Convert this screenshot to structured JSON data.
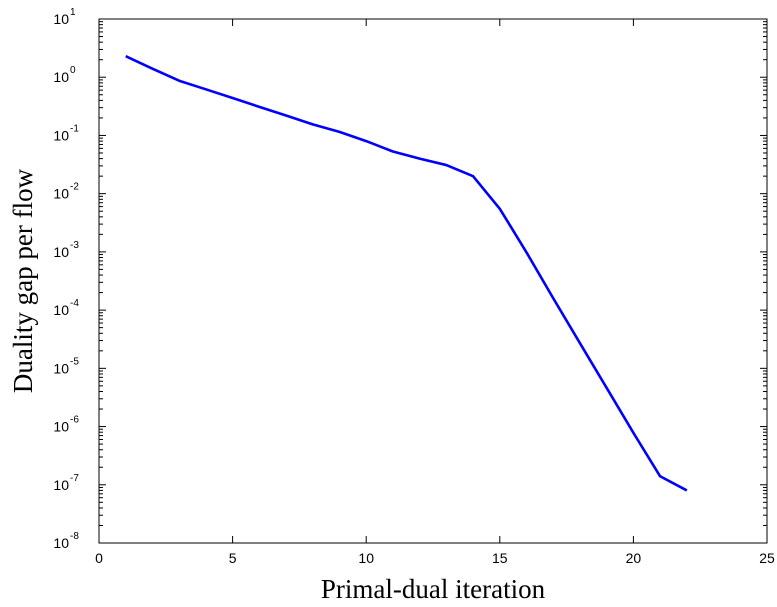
{
  "chart_data": {
    "type": "line",
    "title": "",
    "xlabel": "Primal-dual iteration",
    "ylabel": "Duality gap per flow",
    "xlim": [
      0,
      25
    ],
    "ylim": [
      1e-08,
      10
    ],
    "yscale": "log",
    "grid": false,
    "legend": "none",
    "xticks": [
      0,
      5,
      10,
      15,
      20,
      25
    ],
    "yticks": [
      {
        "base": "10",
        "exp": "-8"
      },
      {
        "base": "10",
        "exp": "-7"
      },
      {
        "base": "10",
        "exp": "-6"
      },
      {
        "base": "10",
        "exp": "-5"
      },
      {
        "base": "10",
        "exp": "-4"
      },
      {
        "base": "10",
        "exp": "-3"
      },
      {
        "base": "10",
        "exp": "-2"
      },
      {
        "base": "10",
        "exp": "-1"
      },
      {
        "base": "10",
        "exp": "0"
      },
      {
        "base": "10",
        "exp": "1"
      }
    ],
    "series": [
      {
        "color": "#0000ff",
        "x": [
          1,
          2,
          3,
          4,
          5,
          6,
          7,
          8,
          9,
          10,
          11,
          12,
          13,
          14,
          15,
          16,
          17,
          18,
          19,
          20,
          21,
          22
        ],
        "y": [
          2.3,
          1.4,
          0.87,
          0.62,
          0.44,
          0.31,
          0.22,
          0.155,
          0.115,
          0.08,
          0.053,
          0.04,
          0.031,
          0.02,
          0.0055,
          0.00098,
          0.00016,
          2.7e-05,
          4.6e-06,
          7.8e-07,
          1.4e-07,
          8e-08
        ]
      }
    ]
  }
}
